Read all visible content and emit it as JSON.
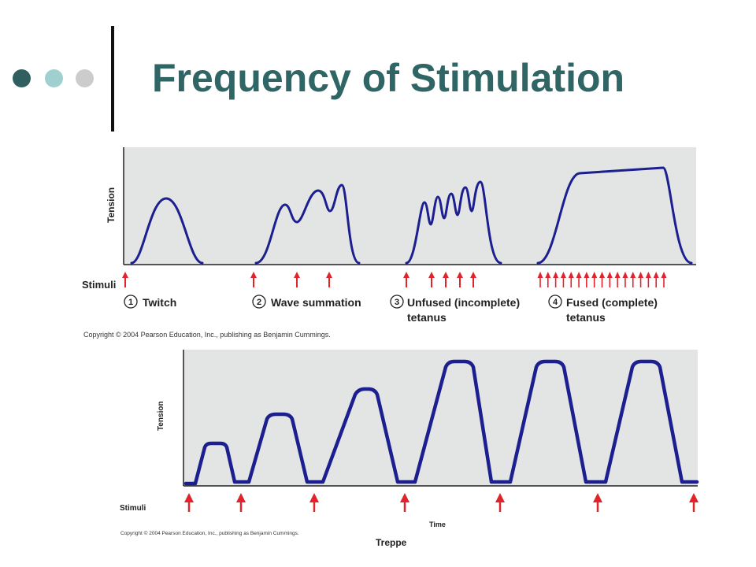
{
  "slide": {
    "title": "Frequency of Stimulation",
    "bullet_dot_colors": [
      "#2f5f5f",
      "#9fcfcf",
      "#cccccc"
    ]
  },
  "top_figure": {
    "ylabel": "Tension",
    "stimuli_label": "Stimuli",
    "panels": [
      {
        "number": "1",
        "label_line1": "Twitch",
        "label_line2": "",
        "stimuli_count": 1
      },
      {
        "number": "2",
        "label_line1": "Wave summation",
        "label_line2": "",
        "stimuli_count": 3
      },
      {
        "number": "3",
        "label_line1": "Unfused (incomplete)",
        "label_line2": "tetanus",
        "stimuli_count": 5
      },
      {
        "number": "4",
        "label_line1": "Fused (complete)",
        "label_line2": "tetanus",
        "stimuli_count": 17
      }
    ],
    "copyright": "Copyright © 2004 Pearson Education, Inc., publishing as Benjamin Cummings."
  },
  "bottom_figure": {
    "ylabel": "Tension",
    "xlabel": "Time",
    "stimuli_label": "Stimuli",
    "stimuli_count": 7,
    "copyright": "Copyright © 2004 Pearson Education, Inc., publishing as Benjamin Cummings.",
    "caption": "Treppe"
  },
  "colors": {
    "curve": "#1c1f8f",
    "arrow": "#e0242c",
    "panel_bg": "#e3e4e4",
    "title": "#2f6565"
  }
}
